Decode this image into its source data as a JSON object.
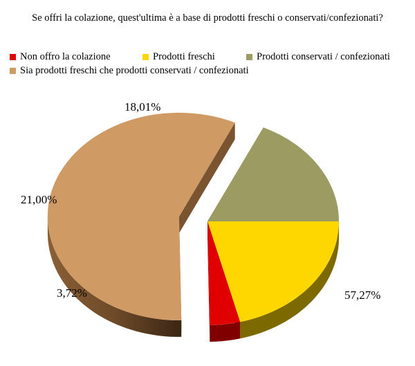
{
  "chart_data": {
    "type": "pie",
    "title": "Se offri la colazione, quest'ultima è a base di prodotti freschi o conservati/confezionati?",
    "categories": [
      "Non offro la colazione",
      "Prodotti freschi",
      "Prodotti conservati / confezionati",
      "Sia prodotti freschi che prodotti conservati / confezionati"
    ],
    "values": [
      3.72,
      21.0,
      18.01,
      57.27
    ],
    "value_labels": [
      "3,72%",
      "21,00%",
      "18,01%",
      "57,27%"
    ],
    "colors": [
      "#e00000",
      "#ffd700",
      "#9c9c62",
      "#d09a64"
    ],
    "exploded": "Sia prodotti freschi che prodotti conservati / confezionati",
    "legend_position": "top-left",
    "style": "3d"
  }
}
